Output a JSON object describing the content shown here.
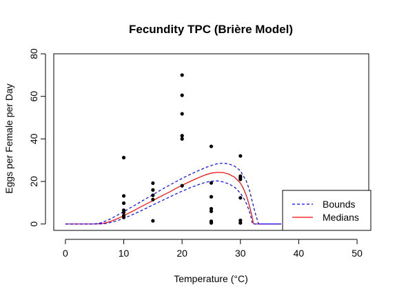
{
  "chart_data": {
    "type": "scatter",
    "title": "Fecundity TPC (Brière Model)",
    "xlabel": "Temperature (°C)",
    "ylabel": "Eggs per Female per Day",
    "xlim": [
      -2,
      52
    ],
    "ylim": [
      -3,
      80
    ],
    "x_ticks": [
      0,
      10,
      20,
      30,
      40,
      50
    ],
    "y_ticks": [
      0,
      20,
      40,
      60,
      80
    ],
    "grid": false,
    "legend_position": "bottom-right",
    "points": {
      "color": "#000000",
      "data": [
        [
          10,
          31.2
        ],
        [
          10,
          13.2
        ],
        [
          10,
          9.8
        ],
        [
          10,
          6.5
        ],
        [
          10,
          5.5
        ],
        [
          10,
          4.0
        ],
        [
          10,
          3.1
        ],
        [
          15,
          19.2
        ],
        [
          15,
          16.0
        ],
        [
          15,
          13.5
        ],
        [
          15,
          11.5
        ],
        [
          15,
          1.5
        ],
        [
          20,
          70.0
        ],
        [
          20,
          60.5
        ],
        [
          20,
          51.8
        ],
        [
          20,
          41.5
        ],
        [
          20,
          40.0
        ],
        [
          20,
          18.0
        ],
        [
          25,
          36.5
        ],
        [
          25,
          19.3
        ],
        [
          25,
          12.8
        ],
        [
          25,
          7.2
        ],
        [
          25,
          6.0
        ],
        [
          25,
          1.3
        ],
        [
          25,
          0.5
        ],
        [
          30,
          32.0
        ],
        [
          30,
          22.5
        ],
        [
          30,
          21.8
        ],
        [
          30,
          21.0
        ],
        [
          30,
          12.3
        ],
        [
          30,
          1.7
        ],
        [
          30,
          0.5
        ]
      ]
    },
    "series": [
      {
        "name": "Medians",
        "color": "#ff0000",
        "dash": "solid",
        "x": [
          0,
          5,
          6,
          7,
          8,
          9,
          10,
          11,
          12,
          13,
          14,
          15,
          16,
          17,
          18,
          19,
          20,
          21,
          22,
          23,
          24,
          25,
          26,
          27,
          28,
          29,
          30,
          30.5,
          31,
          31.5,
          32,
          32.2,
          32.3,
          37
        ],
        "y": [
          0,
          0,
          0.1,
          0.6,
          1.5,
          2.6,
          3.9,
          5.3,
          6.7,
          8.2,
          9.6,
          11.0,
          12.5,
          13.9,
          15.3,
          16.8,
          18.2,
          19.5,
          20.8,
          22.0,
          23.1,
          23.9,
          24.3,
          24.2,
          23.5,
          22.0,
          19.2,
          16.8,
          13.5,
          9.0,
          3.5,
          0.8,
          0,
          0
        ]
      },
      {
        "name": "Bounds",
        "color": "#0000ff",
        "dash": "dashed",
        "x": [
          0,
          5.5,
          6.5,
          7,
          8,
          9,
          10,
          11,
          12,
          13,
          14,
          15,
          16,
          17,
          18,
          19,
          20,
          21,
          22,
          23,
          24,
          25,
          26,
          27,
          28,
          29,
          30,
          30.5,
          31,
          31.5,
          31.8,
          32,
          32.1,
          37
        ],
        "y": [
          0,
          0,
          0.1,
          0.3,
          0.9,
          1.7,
          2.7,
          3.8,
          5.0,
          6.3,
          7.6,
          9.0,
          10.3,
          11.6,
          12.9,
          14.2,
          15.4,
          16.6,
          17.7,
          18.7,
          19.6,
          20.1,
          20.3,
          19.8,
          18.9,
          17.3,
          14.5,
          12.5,
          9.8,
          6.3,
          3.5,
          1.0,
          0,
          0
        ]
      },
      {
        "name": "Bounds",
        "color": "#0000ff",
        "dash": "dashed",
        "x": [
          0,
          4.5,
          5.5,
          6,
          7,
          8,
          9,
          10,
          11,
          12,
          13,
          14,
          15,
          16,
          17,
          18,
          19,
          20,
          21,
          22,
          23,
          24,
          25,
          26,
          27,
          28,
          29,
          30,
          31,
          31.5,
          32,
          32.5,
          33,
          33.1,
          37
        ],
        "y": [
          0,
          0,
          0.2,
          0.5,
          1.5,
          2.8,
          4.3,
          5.8,
          7.4,
          9.0,
          10.6,
          12.2,
          13.8,
          15.4,
          17.0,
          18.5,
          20.0,
          21.4,
          22.8,
          24.1,
          25.3,
          26.5,
          27.5,
          28.3,
          28.6,
          28.3,
          27.2,
          25.0,
          20.2,
          16.5,
          11.0,
          5.5,
          1.0,
          0,
          0
        ]
      }
    ],
    "legend": [
      {
        "label": "Bounds",
        "color": "#0000ff",
        "dash": "dashed"
      },
      {
        "label": "Medians",
        "color": "#ff0000",
        "dash": "solid"
      }
    ]
  }
}
